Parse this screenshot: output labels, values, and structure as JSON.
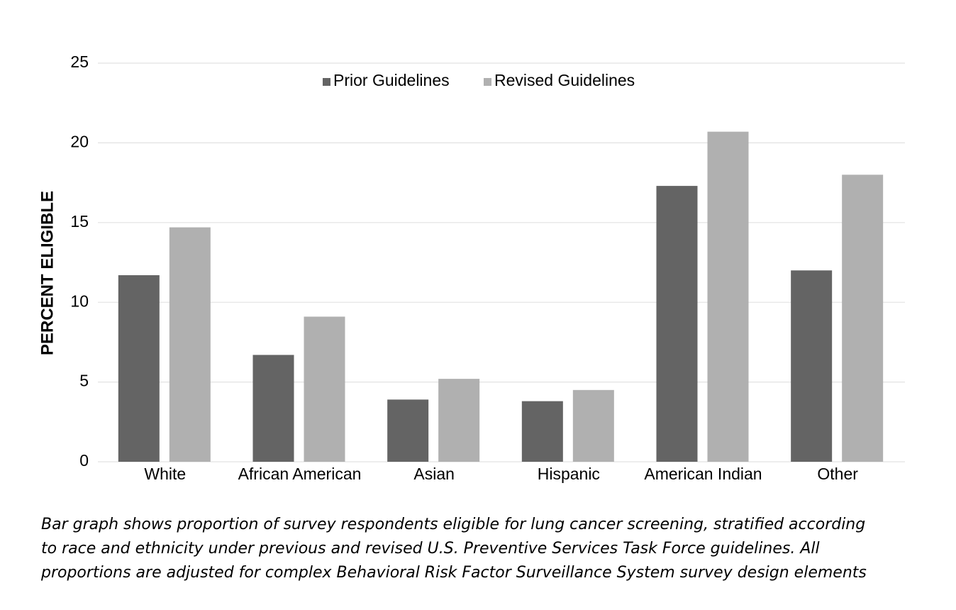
{
  "chart_data": {
    "type": "bar",
    "y_label": "PERCENT ELIGIBLE",
    "categories": [
      "White",
      "African American",
      "Asian",
      "Hispanic",
      "American Indian",
      "Other"
    ],
    "series": [
      {
        "name": "Prior Guidelines",
        "color": "#646464",
        "values": [
          11.7,
          6.7,
          3.9,
          3.8,
          17.3,
          12.0
        ]
      },
      {
        "name": "Revised Guidelines",
        "color": "#b0b0b0",
        "values": [
          14.7,
          9.1,
          5.2,
          4.5,
          20.7,
          18.0
        ]
      }
    ],
    "ylim": [
      0,
      25
    ],
    "yticks": [
      0,
      5,
      10,
      15,
      20,
      25
    ],
    "grid": true,
    "legend": "top",
    "caption": [
      "Bar graph shows proportion of survey respondents eligible for lung cancer screening, stratified according",
      "to race and ethnicity under previous and revised U.S. Preventive Services Task Force guidelines. All",
      "proportions are adjusted for complex Behavioral Risk Factor Surveillance System survey design elements"
    ]
  }
}
